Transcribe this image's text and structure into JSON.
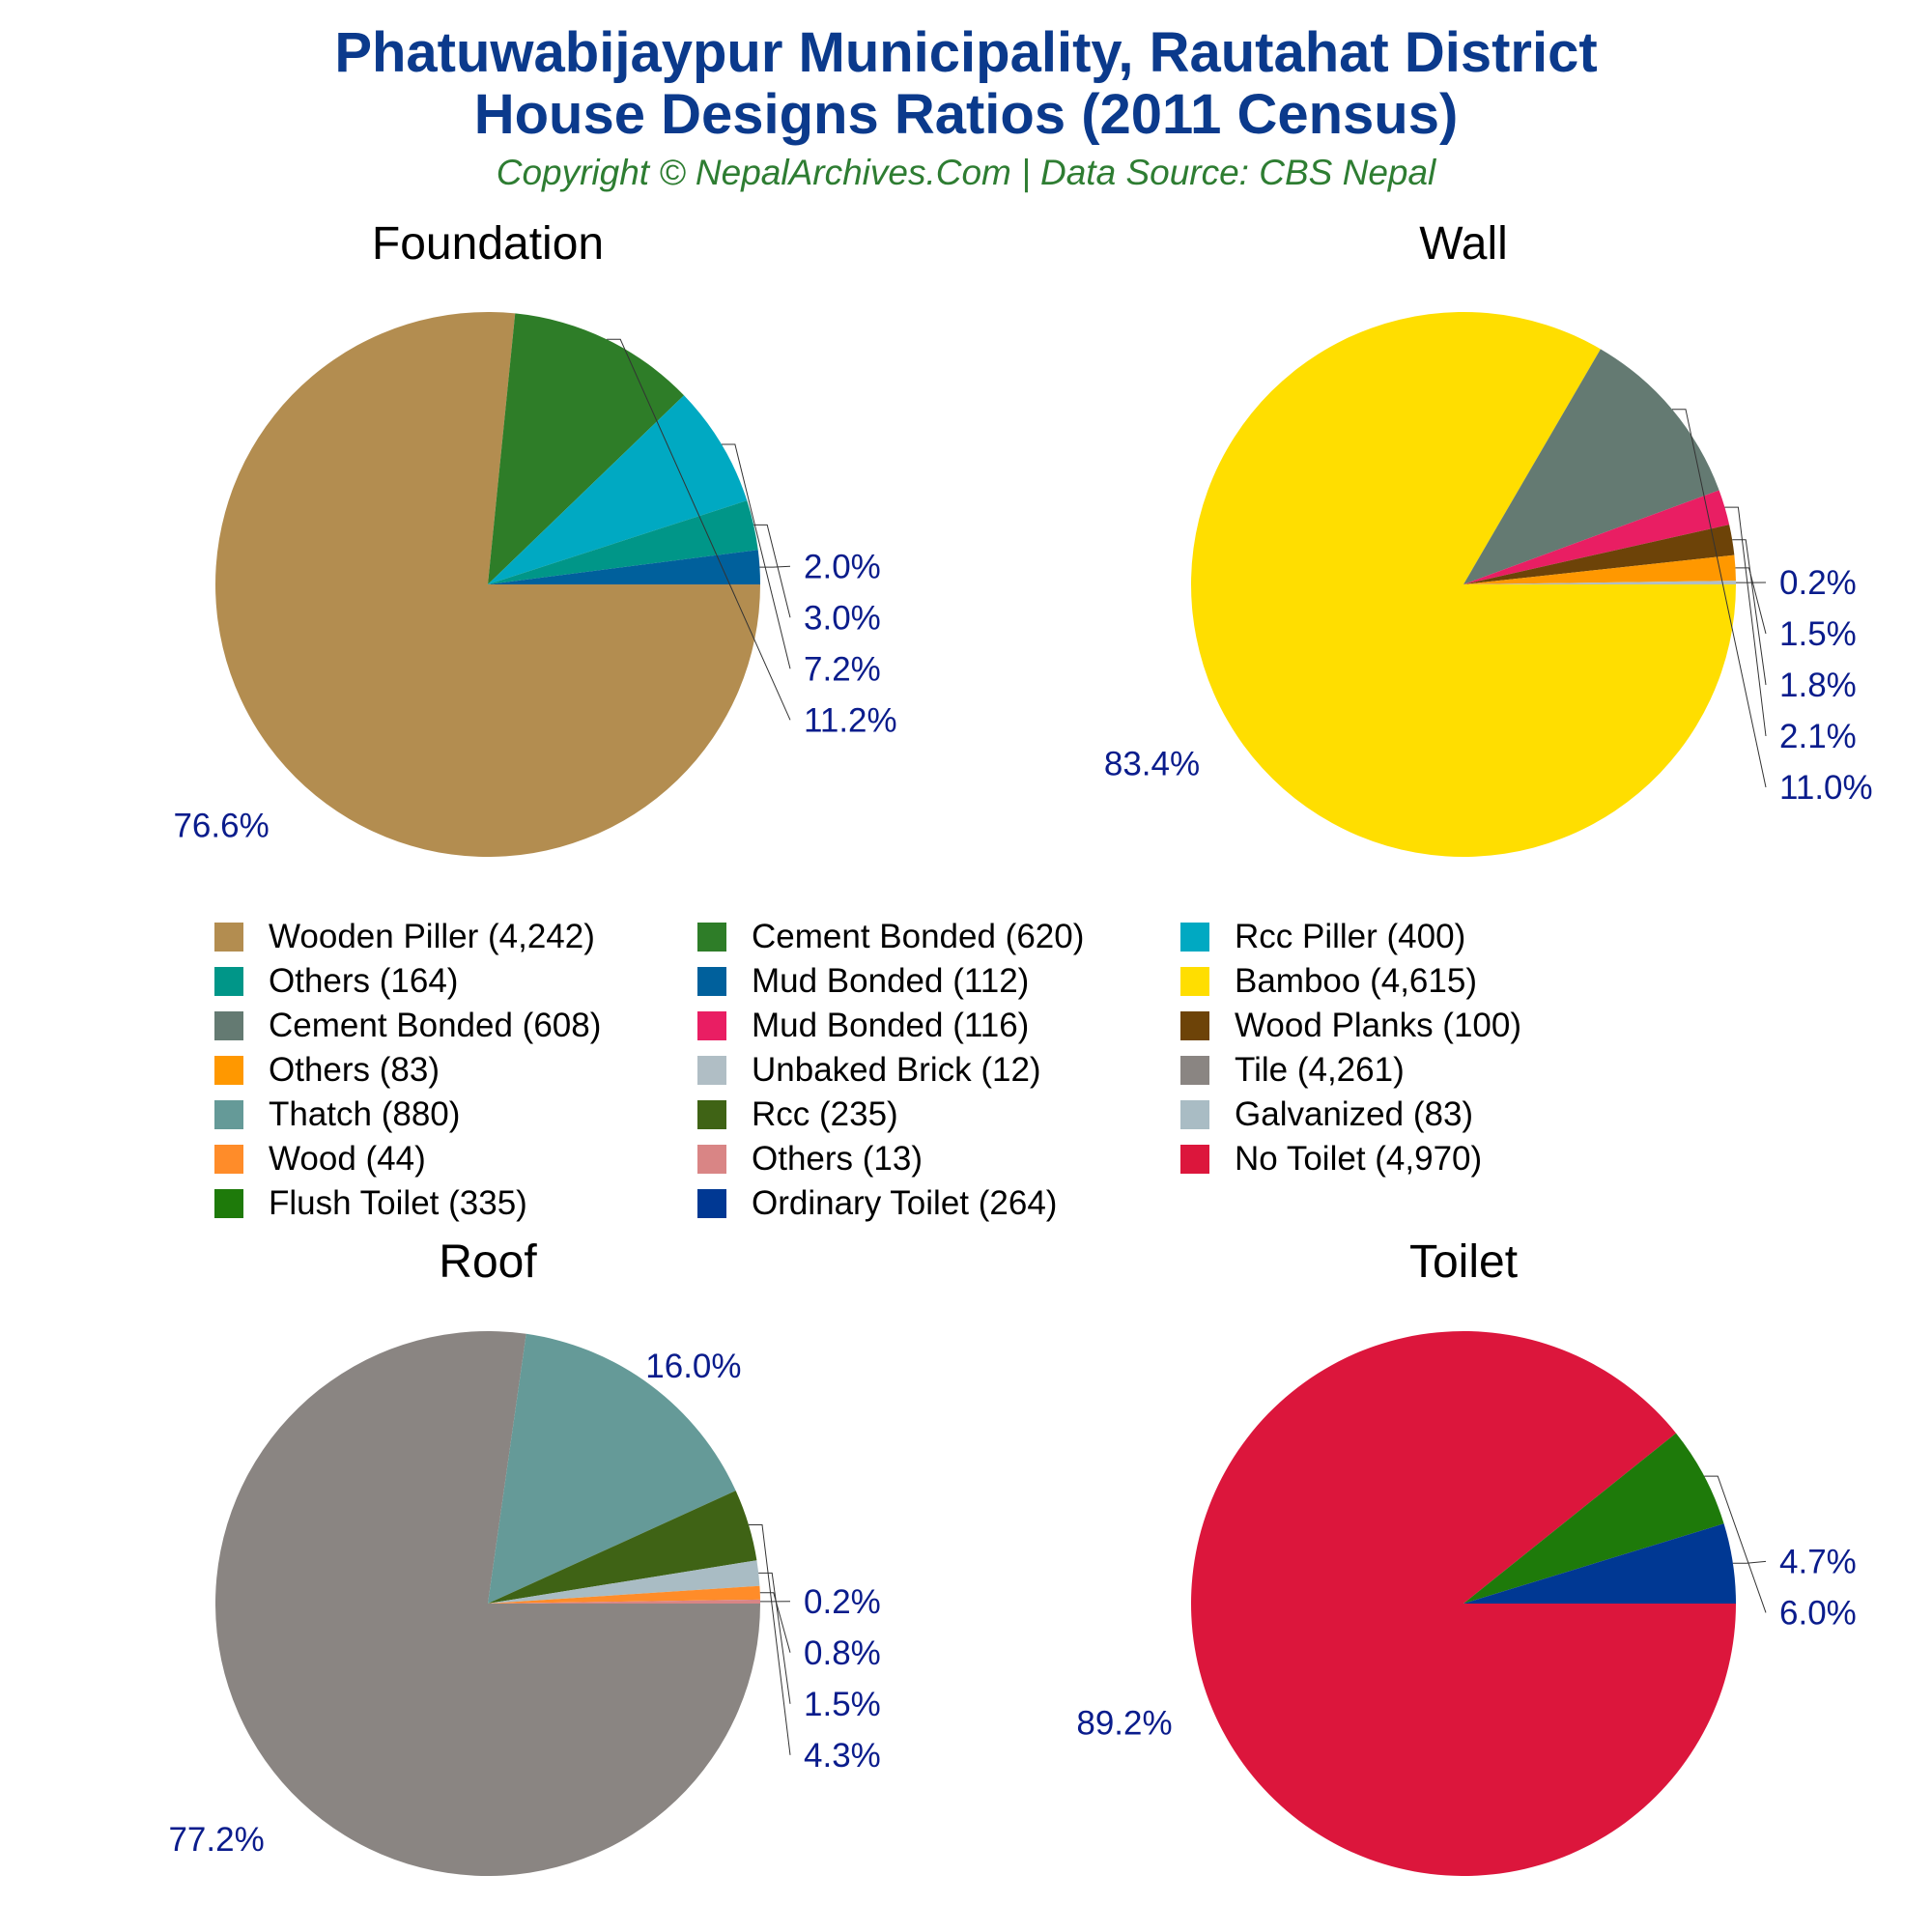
{
  "title_line1": "Phatuwabijaypur Municipality, Rautahat District",
  "title_line2": "House Designs Ratios (2011 Census)",
  "subtitle": "Copyright © NepalArchives.Com | Data Source: CBS Nepal",
  "chart_data": [
    {
      "type": "pie",
      "title": "Foundation",
      "slices": [
        {
          "label": "Wooden Piller",
          "value": 4242,
          "percent": 76.6,
          "color": "#b38d50"
        },
        {
          "label": "Cement Bonded",
          "value": 620,
          "percent": 11.2,
          "color": "#2e7d28"
        },
        {
          "label": "Rcc Piller",
          "value": 400,
          "percent": 7.2,
          "color": "#00a9c2"
        },
        {
          "label": "Others",
          "value": 164,
          "percent": 3.0,
          "color": "#009688"
        },
        {
          "label": "Mud Bonded",
          "value": 112,
          "percent": 2.0,
          "color": "#00609c"
        }
      ]
    },
    {
      "type": "pie",
      "title": "Wall",
      "slices": [
        {
          "label": "Bamboo",
          "value": 4615,
          "percent": 83.4,
          "color": "#ffde00"
        },
        {
          "label": "Cement Bonded",
          "value": 608,
          "percent": 11.0,
          "color": "#647a72"
        },
        {
          "label": "Mud Bonded",
          "value": 116,
          "percent": 2.1,
          "color": "#e91e63"
        },
        {
          "label": "Wood Planks",
          "value": 100,
          "percent": 1.8,
          "color": "#6d4308"
        },
        {
          "label": "Others",
          "value": 83,
          "percent": 1.5,
          "color": "#ff9800"
        },
        {
          "label": "Unbaked Brick",
          "value": 12,
          "percent": 0.2,
          "color": "#b0bec5"
        }
      ]
    },
    {
      "type": "pie",
      "title": "Roof",
      "slices": [
        {
          "label": "Tile",
          "value": 4261,
          "percent": 77.2,
          "color": "#8a8582"
        },
        {
          "label": "Thatch",
          "value": 880,
          "percent": 16.0,
          "color": "#659a98"
        },
        {
          "label": "Rcc",
          "value": 235,
          "percent": 4.3,
          "color": "#3f6315"
        },
        {
          "label": "Galvanized",
          "value": 83,
          "percent": 1.5,
          "color": "#a9bcc4"
        },
        {
          "label": "Wood",
          "value": 44,
          "percent": 0.8,
          "color": "#ff8c29"
        },
        {
          "label": "Others",
          "value": 13,
          "percent": 0.2,
          "color": "#d98585"
        }
      ]
    },
    {
      "type": "pie",
      "title": "Toilet",
      "slices": [
        {
          "label": "No Toilet",
          "value": 4970,
          "percent": 89.2,
          "color": "#dc163c"
        },
        {
          "label": "Flush Toilet",
          "value": 335,
          "percent": 6.0,
          "color": "#1e7a0a"
        },
        {
          "label": "Ordinary Toilet",
          "value": 264,
          "percent": 4.7,
          "color": "#003893"
        }
      ]
    }
  ],
  "legend": [
    {
      "text": "Wooden Piller (4,242)",
      "color": "#b38d50"
    },
    {
      "text": "Cement Bonded (620)",
      "color": "#2e7d28"
    },
    {
      "text": "Rcc Piller (400)",
      "color": "#00a9c2"
    },
    {
      "text": "Others (164)",
      "color": "#009688"
    },
    {
      "text": "Mud Bonded (112)",
      "color": "#00609c"
    },
    {
      "text": "Bamboo (4,615)",
      "color": "#ffde00"
    },
    {
      "text": "Cement Bonded (608)",
      "color": "#647a72"
    },
    {
      "text": "Mud Bonded (116)",
      "color": "#e91e63"
    },
    {
      "text": "Wood Planks (100)",
      "color": "#6d4308"
    },
    {
      "text": "Others (83)",
      "color": "#ff9800"
    },
    {
      "text": "Unbaked Brick (12)",
      "color": "#b0bec5"
    },
    {
      "text": "Tile (4,261)",
      "color": "#8a8582"
    },
    {
      "text": "Thatch (880)",
      "color": "#659a98"
    },
    {
      "text": "Rcc (235)",
      "color": "#3f6315"
    },
    {
      "text": "Galvanized (83)",
      "color": "#a9bcc4"
    },
    {
      "text": "Wood (44)",
      "color": "#ff8c29"
    },
    {
      "text": "Others (13)",
      "color": "#d98585"
    },
    {
      "text": "No Toilet (4,970)",
      "color": "#dc163c"
    },
    {
      "text": "Flush Toilet (335)",
      "color": "#1e7a0a"
    },
    {
      "text": "Ordinary Toilet (264)",
      "color": "#003893"
    }
  ]
}
